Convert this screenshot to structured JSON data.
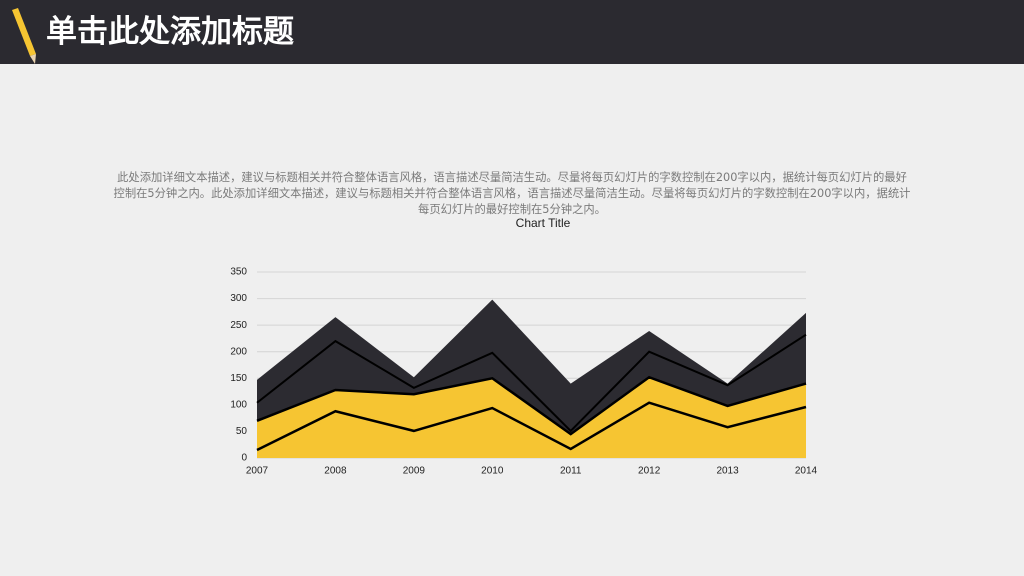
{
  "header": {
    "title": "单击此处添加标题"
  },
  "body": {
    "text": "此处添加详细文本描述，建议与标题相关并符合整体语言风格，语言描述尽量简洁生动。尽量将每页幻灯片的字数控制在200字以内，据统计每页幻灯片的最好控制在5分钟之内。此处添加详细文本描述，建议与标题相关并符合整体语言风格，语言描述尽量简洁生动。尽量将每页幻灯片的字数控制在200字以内，据统计每页幻灯片的最好控制在5分钟之内。"
  },
  "chart_data": {
    "type": "stacked_area",
    "title": "Chart Title",
    "categories": [
      "2007",
      "2008",
      "2009",
      "2010",
      "2011",
      "2012",
      "2013",
      "2014"
    ],
    "series": [
      {
        "color": "#f6c532",
        "values": [
          15,
          88,
          51,
          94,
          17,
          104,
          58,
          96
        ]
      },
      {
        "color": "#f6c532",
        "values": [
          55,
          40,
          69,
          56,
          28,
          48,
          40,
          44
        ]
      },
      {
        "color": "#2c2b31",
        "values": [
          34,
          92,
          12,
          48,
          6,
          48,
          39,
          92
        ]
      },
      {
        "color": "#2c2b31",
        "values": [
          43,
          45,
          20,
          100,
          89,
          39,
          3,
          41
        ]
      }
    ],
    "ylim": [
      0,
      350
    ],
    "yticks": [
      0,
      50,
      100,
      150,
      200,
      250,
      300,
      350
    ],
    "grid": true
  }
}
